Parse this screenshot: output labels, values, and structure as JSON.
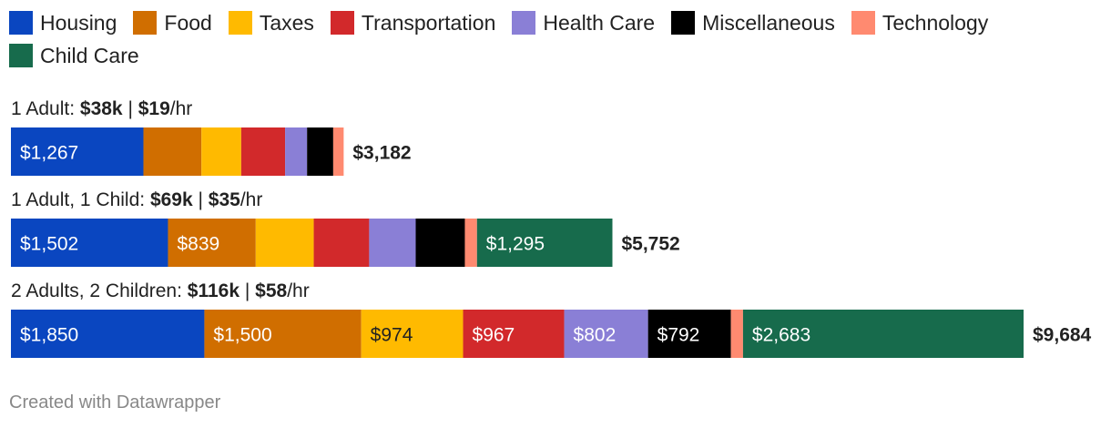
{
  "chart_data": {
    "type": "bar",
    "orientation": "horizontal",
    "stacked": true,
    "categories": [
      "Housing",
      "Food",
      "Taxes",
      "Transportation",
      "Health Care",
      "Miscellaneous",
      "Technology",
      "Child Care"
    ],
    "colors": [
      "#0a46c0",
      "#d06e00",
      "#ffba00",
      "#d2292b",
      "#8a7fd6",
      "#000000",
      "#ff8a70",
      "#176b4c"
    ],
    "label_colors": [
      "#ffffff",
      "#ffffff",
      "#222222",
      "#ffffff",
      "#ffffff",
      "#ffffff",
      "#ffffff",
      "#ffffff"
    ],
    "series": [
      {
        "title_parts": [
          {
            "text": "1 Adult: ",
            "bold": false
          },
          {
            "text": "$38k",
            "bold": true
          },
          {
            "text": " | ",
            "bold": false
          },
          {
            "text": "$19",
            "bold": true
          },
          {
            "text": "/hr",
            "bold": false
          }
        ],
        "values": [
          1267,
          555,
          380,
          420,
          210,
          250,
          100,
          0
        ],
        "labels": [
          "$1,267",
          "",
          "",
          "",
          "",
          "",
          "",
          ""
        ],
        "total_label": "$3,182"
      },
      {
        "title_parts": [
          {
            "text": "1 Adult, 1 Child: ",
            "bold": false
          },
          {
            "text": "$69k",
            "bold": true
          },
          {
            "text": " | ",
            "bold": false
          },
          {
            "text": "$35",
            "bold": true
          },
          {
            "text": "/hr",
            "bold": false
          }
        ],
        "values": [
          1502,
          839,
          555,
          530,
          445,
          470,
          116,
          1295
        ],
        "labels": [
          "$1,502",
          "$839",
          "",
          "",
          "",
          "",
          "",
          "$1,295"
        ],
        "total_label": "$5,752"
      },
      {
        "title_parts": [
          {
            "text": "2 Adults, 2 Children: ",
            "bold": false
          },
          {
            "text": "$116k",
            "bold": true
          },
          {
            "text": " | ",
            "bold": false
          },
          {
            "text": "$58",
            "bold": true
          },
          {
            "text": "/hr",
            "bold": false
          }
        ],
        "values": [
          1850,
          1500,
          974,
          967,
          802,
          792,
          116,
          2683
        ],
        "labels": [
          "$1,850",
          "$1,500",
          "$974",
          "$967",
          "$802",
          "$792",
          "",
          "$2,683"
        ],
        "total_label": "$9,684"
      }
    ]
  },
  "footer": {
    "credit": "Created with Datawrapper"
  }
}
